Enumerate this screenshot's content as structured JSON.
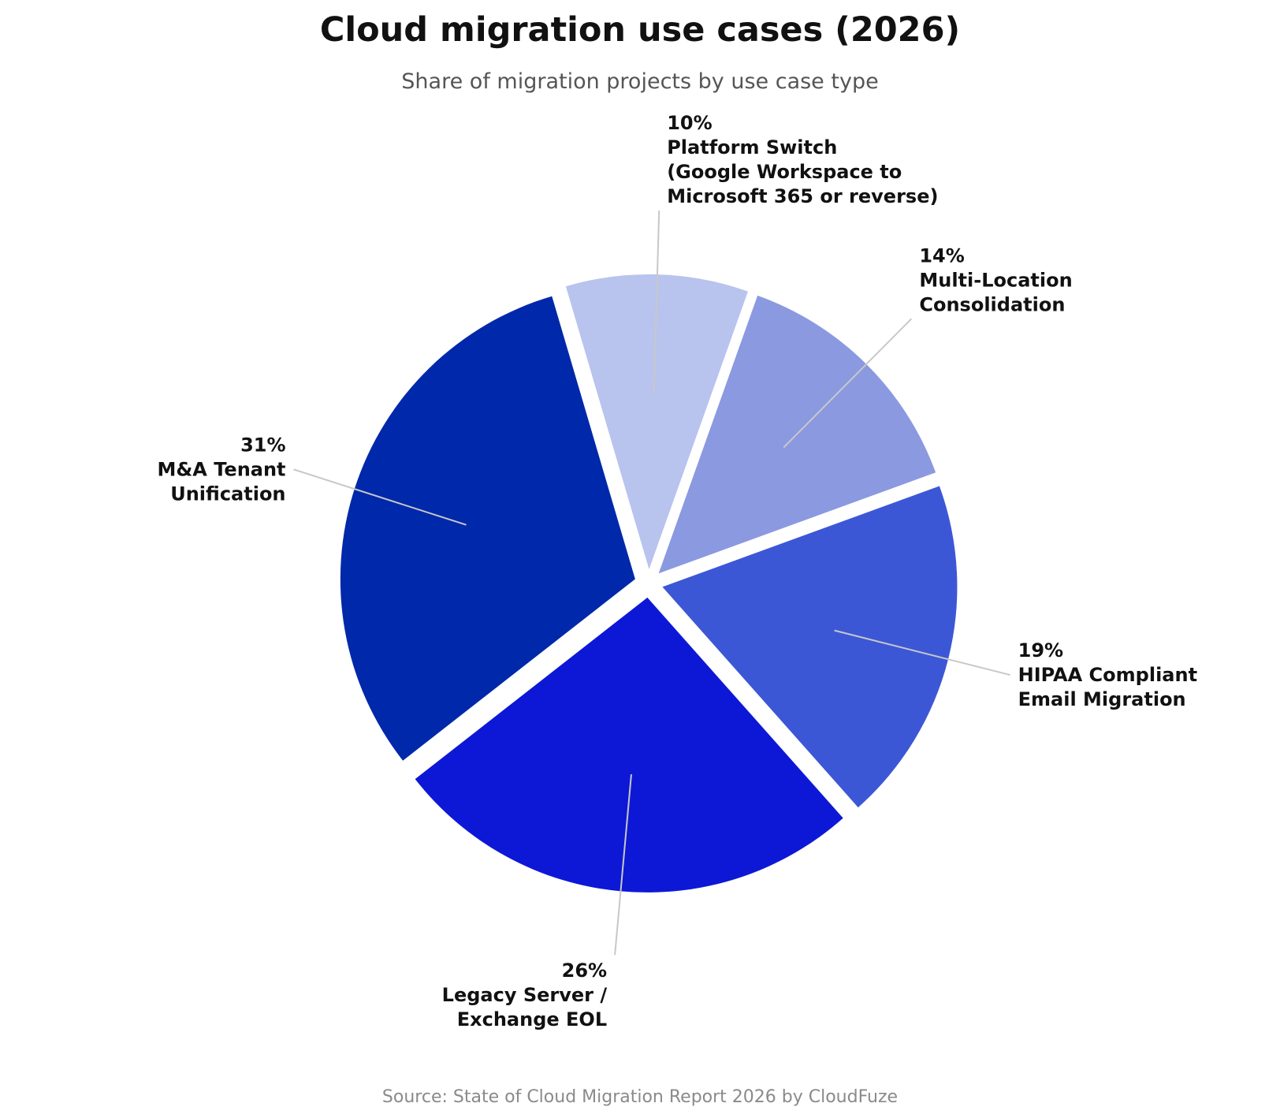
{
  "chart_data": {
    "type": "pie",
    "title": "Cloud migration use cases (2026)",
    "subtitle": "Share of migration projects by use case type",
    "source": "Source: State of Cloud Migration Report 2026 by CloudFuze",
    "slices": [
      {
        "label_lines": [
          "HIPAA Compliant",
          "Email Migration"
        ],
        "value": 19,
        "value_label": "19%",
        "color": "#3c57d6"
      },
      {
        "label_lines": [
          "Legacy Server /",
          "Exchange EOL"
        ],
        "value": 26,
        "value_label": "26%",
        "color": "#0d18d6"
      },
      {
        "label_lines": [
          "M&A Tenant",
          "Unification"
        ],
        "value": 31,
        "value_label": "31%",
        "color": "#0028aa"
      },
      {
        "label_lines": [
          "Platform Switch",
          "(Google Workspace to",
          "Microsoft 365 or reverse)"
        ],
        "value": 10,
        "value_label": "10%",
        "color": "#b8c3ee"
      },
      {
        "label_lines": [
          "Multi-Location",
          "Consolidation"
        ],
        "value": 14,
        "value_label": "14%",
        "color": "#8a99e0"
      }
    ]
  }
}
